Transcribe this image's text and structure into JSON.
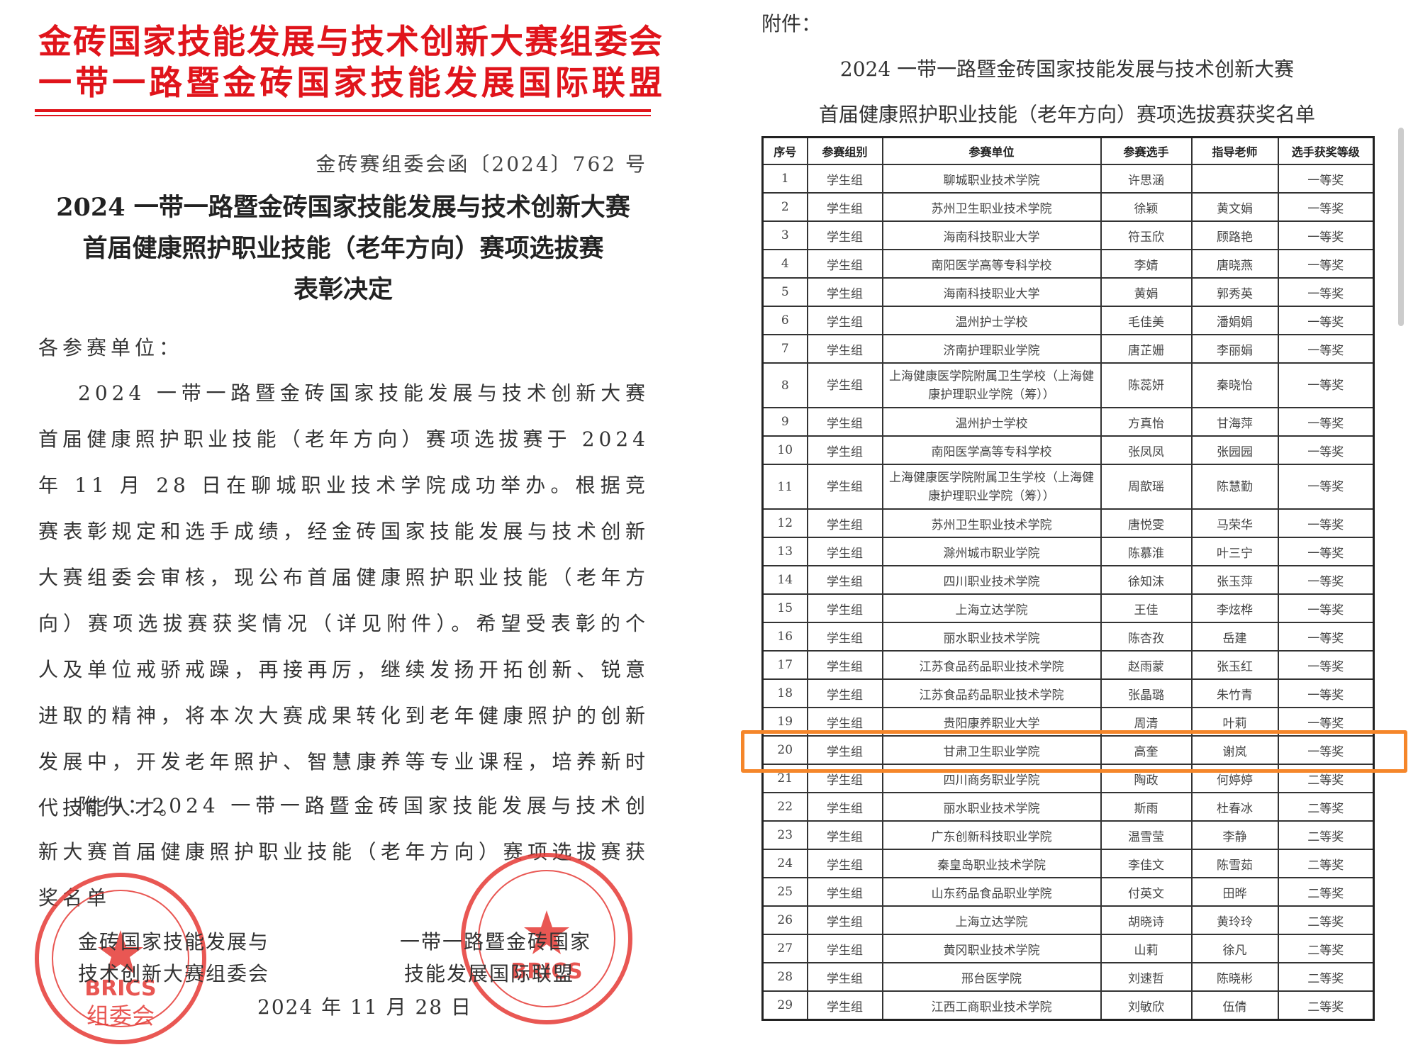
{
  "header": {
    "lines": [
      "金砖国家技能发展与技术创新大赛组委会",
      "一带一路暨金砖国家技能发展国际联盟"
    ]
  },
  "notice": {
    "doc_number": "金砖赛组委会函〔2024〕762 号",
    "title": [
      "2024 一带一路暨金砖国家技能发展与技术创新大赛",
      "首届健康照护职业技能（老年方向）赛项选拔赛",
      "表彰决定"
    ],
    "salutation": "各参赛单位：",
    "body": "2024 一带一路暨金砖国家技能发展与技术创新大赛首届健康照护职业技能（老年方向）赛项选拔赛于 2024 年 11 月 28 日在聊城职业技术学院成功举办。根据竞赛表彰规定和选手成绩，经金砖国家技能发展与技术创新大赛组委会审核，现公布首届健康照护职业技能（老年方向）赛项选拔赛获奖情况（详见附件）。希望受表彰的个人及单位戒骄戒躁，再接再厉，继续发扬开拓创新、锐意进取的精神，将本次大赛成果转化到老年健康照护的创新发展中，开发老年照护、智慧康养等专业课程，培养新时代技能人才。",
    "attachment_note": "附件：2024 一带一路暨金砖国家技能发展与技术创新大赛首届健康照护职业技能（老年方向）赛项选拔赛获奖名单",
    "signatories": [
      [
        "金砖国家技能发展与",
        "技术创新大赛组委会"
      ],
      [
        "一带一路暨金砖国家",
        "技能发展国际联盟"
      ]
    ],
    "date": "2024 年 11 月 28 日"
  },
  "seals": [
    {
      "mark": "BRICS",
      "label": "组委会"
    },
    {
      "mark": "BRICS"
    }
  ],
  "attachment": {
    "label": "附件：",
    "title": [
      "2024 一带一路暨金砖国家技能发展与技术创新大赛",
      "首届健康照护职业技能（老年方向）赛项选拔赛获奖名单"
    ],
    "table": {
      "columns": [
        "序号",
        "参赛组别",
        "参赛单位",
        "参赛选手",
        "指导老师",
        "选手获奖等级"
      ],
      "rows": [
        [
          1,
          "学生组",
          "聊城职业技术学院",
          "许思涵",
          null,
          "一等奖"
        ],
        [
          2,
          "学生组",
          "苏州卫生职业技术学院",
          "徐颖",
          "黄文娟",
          "一等奖"
        ],
        [
          3,
          "学生组",
          "海南科技职业大学",
          "符玉欣",
          "顾路艳",
          "一等奖"
        ],
        [
          4,
          "学生组",
          "南阳医学高等专科学校",
          "李婧",
          "唐晓燕",
          "一等奖"
        ],
        [
          5,
          "学生组",
          "海南科技职业大学",
          "黄娟",
          "郭秀英",
          "一等奖"
        ],
        [
          6,
          "学生组",
          "温州护士学校",
          "毛佳美",
          "潘娟娟",
          "一等奖"
        ],
        [
          7,
          "学生组",
          "济南护理职业学院",
          "唐芷姗",
          "李丽娟",
          "一等奖"
        ],
        [
          8,
          "学生组",
          "上海健康医学院附属卫生学校（上海健康护理职业学院（筹））",
          "陈蕊妍",
          "秦晓怡",
          "一等奖"
        ],
        [
          9,
          "学生组",
          "温州护士学校",
          "方真怡",
          "甘海萍",
          "一等奖"
        ],
        [
          10,
          "学生组",
          "南阳医学高等专科学校",
          "张凤凤",
          "张园园",
          "一等奖"
        ],
        [
          11,
          "学生组",
          "上海健康医学院附属卫生学校（上海健康护理职业学院（筹））",
          "周歆瑶",
          "陈慧勤",
          "一等奖"
        ],
        [
          12,
          "学生组",
          "苏州卫生职业技术学院",
          "唐悦雯",
          "马荣华",
          "一等奖"
        ],
        [
          13,
          "学生组",
          "滁州城市职业学院",
          "陈慕淮",
          "叶三宁",
          "一等奖"
        ],
        [
          14,
          "学生组",
          "四川职业技术学院",
          "徐知沫",
          "张玉萍",
          "一等奖"
        ],
        [
          15,
          "学生组",
          "上海立达学院",
          "王佳",
          "李炫桦",
          "一等奖"
        ],
        [
          16,
          "学生组",
          "丽水职业技术学院",
          "陈杏孜",
          "岳建",
          "一等奖"
        ],
        [
          17,
          "学生组",
          "江苏食品药品职业技术学院",
          "赵雨蒙",
          "张玉红",
          "一等奖"
        ],
        [
          18,
          "学生组",
          "江苏食品药品职业技术学院",
          "张晶璐",
          "朱竹青",
          "一等奖"
        ],
        [
          19,
          "学生组",
          "贵阳康养职业大学",
          "周清",
          "叶莉",
          "一等奖"
        ],
        [
          20,
          "学生组",
          "甘肃卫生职业学院",
          "高奎",
          "谢岚",
          "一等奖"
        ],
        [
          21,
          "学生组",
          "四川商务职业学院",
          "陶政",
          "何婷婷",
          "二等奖"
        ],
        [
          22,
          "学生组",
          "丽水职业技术学院",
          "斯雨",
          "杜春冰",
          "二等奖"
        ],
        [
          23,
          "学生组",
          "广东创新科技职业学院",
          "温雪莹",
          "李静",
          "二等奖"
        ],
        [
          24,
          "学生组",
          "秦皇岛职业技术学院",
          "李佳文",
          "陈雪茹",
          "二等奖"
        ],
        [
          25,
          "学生组",
          "山东药品食品职业学院",
          "付英文",
          "田晔",
          "二等奖"
        ],
        [
          26,
          "学生组",
          "上海立达学院",
          "胡晓诗",
          "黄玲玲",
          "二等奖"
        ],
        [
          27,
          "学生组",
          "黄冈职业技术学院",
          "山莉",
          "徐凡",
          "二等奖"
        ],
        [
          28,
          "学生组",
          "邢台医学院",
          "刘速哲",
          "陈晓彬",
          "二等奖"
        ],
        [
          29,
          "学生组",
          "江西工商职业技术学院",
          "刘敏欣",
          "伍倩",
          "二等奖"
        ]
      ]
    }
  }
}
